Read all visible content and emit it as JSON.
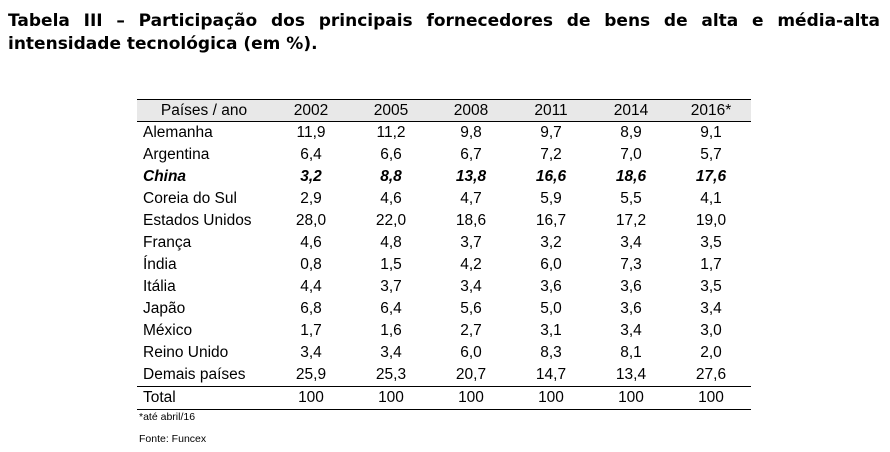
{
  "title": "Tabela III – Participação dos principais fornecedores de bens de alta e média-alta intensidade tecnológica (em %).",
  "table": {
    "headers": [
      "Países / ano",
      "2002",
      "2005",
      "2008",
      "2011",
      "2014",
      "2016*"
    ],
    "rows": [
      {
        "country": "Alemanha",
        "values": [
          "11,9",
          "11,2",
          "9,8",
          "9,7",
          "8,9",
          "9,1"
        ]
      },
      {
        "country": "Argentina",
        "values": [
          "6,4",
          "6,6",
          "6,7",
          "7,2",
          "7,0",
          "5,7"
        ]
      },
      {
        "country": "China",
        "values": [
          "3,2",
          "8,8",
          "13,8",
          "16,6",
          "18,6",
          "17,6"
        ],
        "highlight": true
      },
      {
        "country": "Coreia do Sul",
        "values": [
          "2,9",
          "4,6",
          "4,7",
          "5,9",
          "5,5",
          "4,1"
        ]
      },
      {
        "country": "Estados Unidos",
        "values": [
          "28,0",
          "22,0",
          "18,6",
          "16,7",
          "17,2",
          "19,0"
        ]
      },
      {
        "country": "França",
        "values": [
          "4,6",
          "4,8",
          "3,7",
          "3,2",
          "3,4",
          "3,5"
        ]
      },
      {
        "country": "Índia",
        "values": [
          "0,8",
          "1,5",
          "4,2",
          "6,0",
          "7,3",
          "1,7"
        ]
      },
      {
        "country": "Itália",
        "values": [
          "4,4",
          "3,7",
          "3,4",
          "3,6",
          "3,6",
          "3,5"
        ]
      },
      {
        "country": "Japão",
        "values": [
          "6,8",
          "6,4",
          "5,6",
          "5,0",
          "3,6",
          "3,4"
        ]
      },
      {
        "country": "México",
        "values": [
          "1,7",
          "1,6",
          "2,7",
          "3,1",
          "3,4",
          "3,0"
        ]
      },
      {
        "country": "Reino Unido",
        "values": [
          "3,4",
          "3,4",
          "6,0",
          "8,3",
          "8,1",
          "2,0"
        ]
      },
      {
        "country": "Demais países",
        "values": [
          "25,9",
          "25,3",
          "20,7",
          "14,7",
          "13,4",
          "27,6"
        ]
      },
      {
        "country": "Total",
        "values": [
          "100",
          "100",
          "100",
          "100",
          "100",
          "100"
        ],
        "total": true
      }
    ]
  },
  "footnote": "*até abril/16",
  "source": "Fonte: Funcex"
}
